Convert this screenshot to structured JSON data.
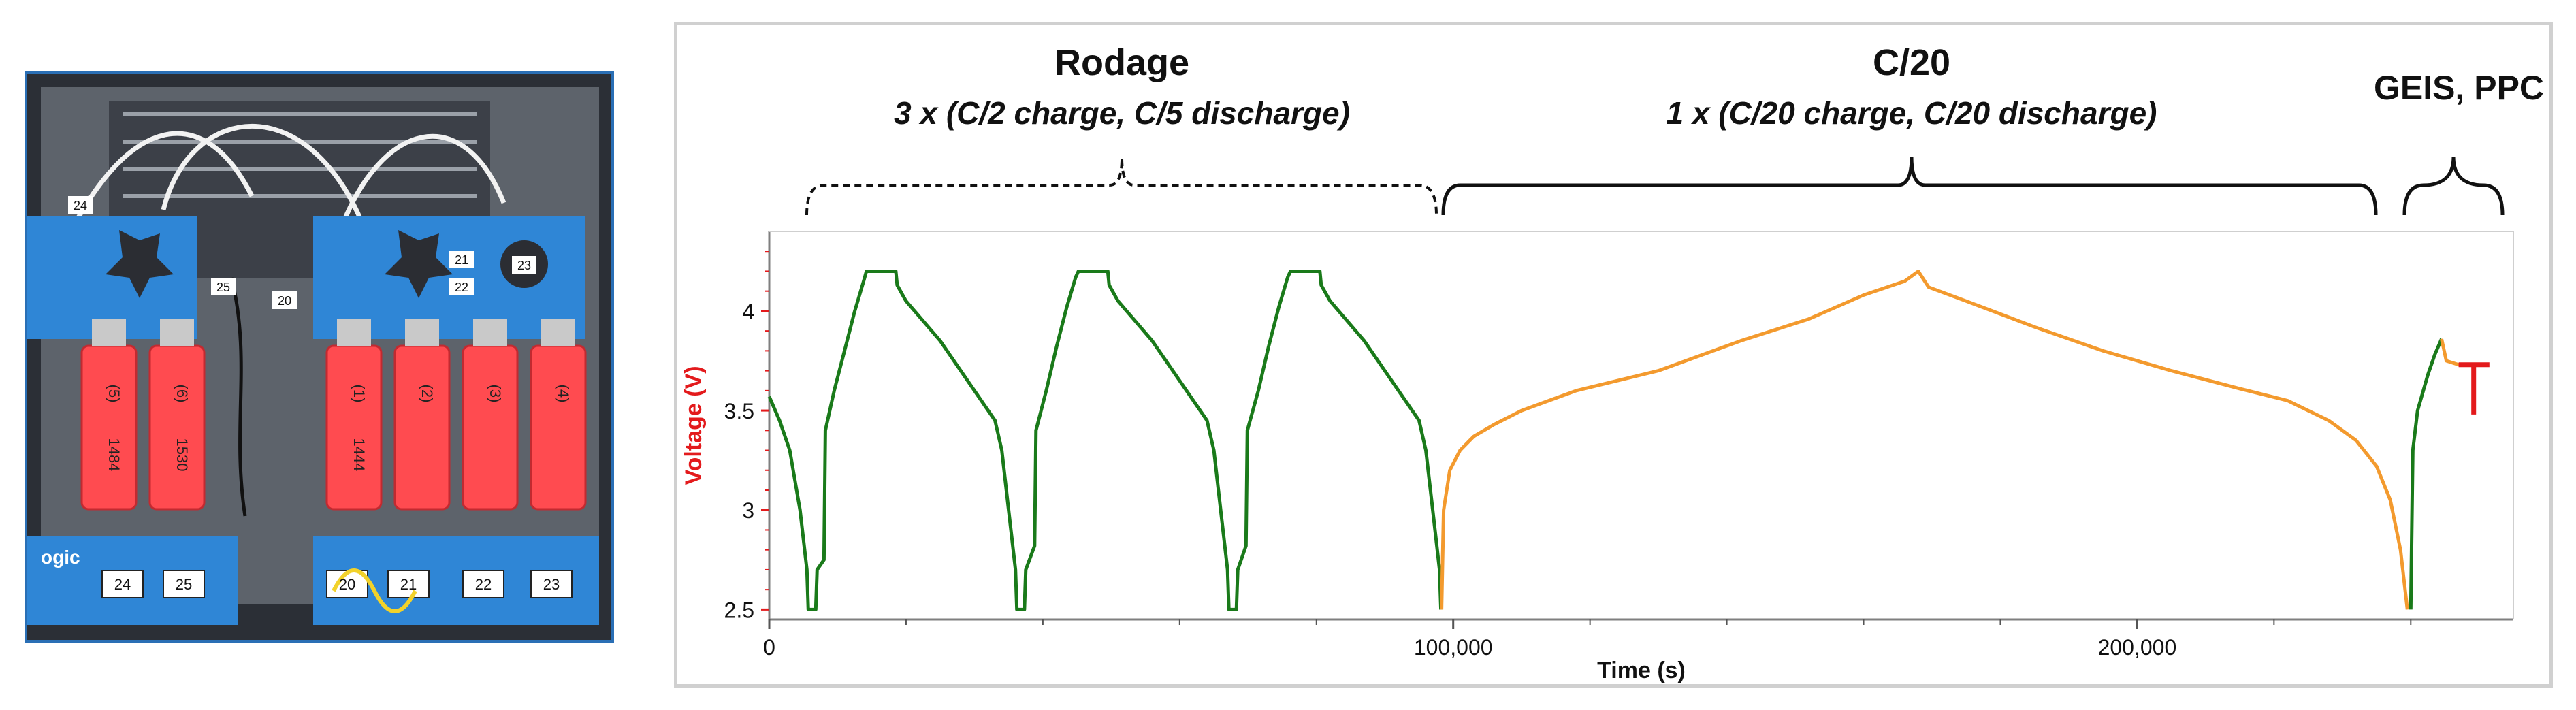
{
  "photo": {
    "description_icon": "battery-cells-photo",
    "cell_labels": [
      "(5)",
      "(6)",
      "(1)",
      "(2)",
      "(3)",
      "(4)"
    ],
    "cell_numbers": [
      "1484",
      "1530",
      "1444"
    ],
    "channel_labels": [
      "24",
      "25",
      "20",
      "21",
      "22",
      "23"
    ],
    "wire_tags": [
      "24",
      "25",
      "20",
      "21",
      "22",
      "23"
    ],
    "brand_fragment": "ogic"
  },
  "annotations": {
    "phase1_title": "Rodage",
    "phase1_sub": "3 x (C/2 charge, C/5 discharge)",
    "phase2_title": "C/20",
    "phase2_sub": "1 x (C/20 charge, C/20 discharge)",
    "phase3_title": "GEIS, PPC"
  },
  "chart_data": {
    "type": "line",
    "xlabel": "Time (s)",
    "ylabel": "Voltage (V)",
    "xlim": [
      0,
      255000
    ],
    "ylim": [
      2.45,
      4.4
    ],
    "xticks": [
      0,
      100000,
      200000
    ],
    "xtick_labels": [
      "0",
      "100,000",
      "200,000"
    ],
    "yticks": [
      2.5,
      3,
      3.5,
      4
    ],
    "ytick_labels": [
      "2.5",
      "3",
      "3.5",
      "4"
    ],
    "ylabel_color": "#e31a1c",
    "series": [
      {
        "color": "#1a7a1a",
        "segments": [
          [
            [
              0,
              3.57
            ],
            [
              1500,
              3.45
            ],
            [
              3000,
              3.3
            ],
            [
              4500,
              3.0
            ],
            [
              5500,
              2.7
            ],
            [
              5700,
              2.5
            ],
            [
              6800,
              2.5
            ],
            [
              7000,
              2.7
            ],
            [
              8000,
              2.75
            ],
            [
              8200,
              3.4
            ],
            [
              9500,
              3.6
            ],
            [
              11000,
              3.8
            ],
            [
              12500,
              4.0
            ],
            [
              13800,
              4.15
            ],
            [
              14200,
              4.2
            ],
            [
              18500,
              4.2
            ],
            [
              18700,
              4.13
            ],
            [
              20000,
              4.05
            ],
            [
              25000,
              3.85
            ],
            [
              30000,
              3.6
            ],
            [
              33000,
              3.45
            ],
            [
              34000,
              3.3
            ],
            [
              35000,
              3.0
            ],
            [
              36000,
              2.7
            ],
            [
              36200,
              2.5
            ],
            [
              37300,
              2.5
            ],
            [
              37500,
              2.7
            ],
            [
              38800,
              2.82
            ],
            [
              39000,
              3.4
            ],
            [
              40500,
              3.6
            ],
            [
              42000,
              3.82
            ],
            [
              43500,
              4.02
            ],
            [
              44800,
              4.17
            ],
            [
              45200,
              4.2
            ],
            [
              49500,
              4.2
            ],
            [
              49700,
              4.13
            ],
            [
              51000,
              4.05
            ],
            [
              56000,
              3.85
            ],
            [
              61000,
              3.6
            ],
            [
              64000,
              3.45
            ],
            [
              65000,
              3.3
            ],
            [
              66000,
              3.0
            ],
            [
              67000,
              2.7
            ],
            [
              67200,
              2.5
            ],
            [
              68300,
              2.5
            ],
            [
              68500,
              2.7
            ],
            [
              69700,
              2.82
            ],
            [
              69900,
              3.4
            ],
            [
              71500,
              3.6
            ],
            [
              73000,
              3.82
            ],
            [
              74500,
              4.02
            ],
            [
              75800,
              4.17
            ],
            [
              76200,
              4.2
            ],
            [
              80500,
              4.2
            ],
            [
              80700,
              4.13
            ],
            [
              82000,
              4.05
            ],
            [
              87000,
              3.85
            ],
            [
              92000,
              3.6
            ],
            [
              95000,
              3.45
            ],
            [
              96000,
              3.3
            ],
            [
              97000,
              3.0
            ],
            [
              98000,
              2.7
            ],
            [
              98200,
              2.5
            ]
          ],
          [
            [
              240000,
              2.5
            ],
            [
              240300,
              3.3
            ],
            [
              241000,
              3.5
            ],
            [
              242500,
              3.68
            ],
            [
              243500,
              3.78
            ],
            [
              244500,
              3.86
            ]
          ]
        ]
      },
      {
        "color": "#f39a2e",
        "segments": [
          [
            [
              98300,
              2.5
            ],
            [
              98600,
              3.0
            ],
            [
              99500,
              3.2
            ],
            [
              101000,
              3.3
            ],
            [
              103000,
              3.37
            ],
            [
              106000,
              3.43
            ],
            [
              110000,
              3.5
            ],
            [
              118000,
              3.6
            ],
            [
              130000,
              3.7
            ],
            [
              142000,
              3.85
            ],
            [
              152000,
              3.96
            ],
            [
              160000,
              4.08
            ],
            [
              166000,
              4.15
            ],
            [
              168000,
              4.2
            ],
            [
              169500,
              4.12
            ],
            [
              175000,
              4.05
            ],
            [
              185000,
              3.92
            ],
            [
              195000,
              3.8
            ],
            [
              205000,
              3.7
            ],
            [
              215000,
              3.61
            ],
            [
              222000,
              3.55
            ],
            [
              228000,
              3.45
            ],
            [
              232000,
              3.35
            ],
            [
              235000,
              3.22
            ],
            [
              237000,
              3.05
            ],
            [
              238500,
              2.8
            ],
            [
              239500,
              2.5
            ]
          ],
          [
            [
              244500,
              3.86
            ],
            [
              245200,
              3.75
            ],
            [
              247000,
              3.73
            ],
            [
              249000,
              3.73
            ]
          ]
        ]
      },
      {
        "color": "#e31a1c",
        "segments": [
          [
            [
              247000,
              3.73
            ],
            [
              251500,
              3.73
            ]
          ],
          [
            [
              249200,
              3.73
            ],
            [
              249200,
              3.48
            ]
          ]
        ]
      }
    ]
  }
}
